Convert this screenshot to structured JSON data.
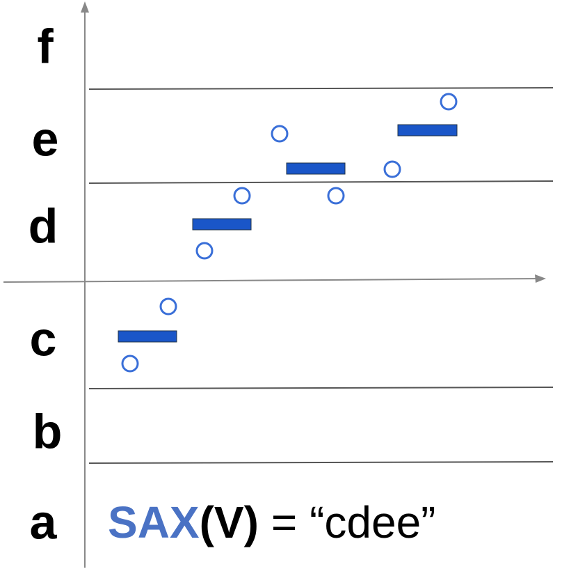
{
  "levels": [
    "f",
    "e",
    "d",
    "c",
    "b",
    "a"
  ],
  "formula": {
    "name": "SAX",
    "argument": "(V)",
    "result": "= “cdee”"
  }
}
